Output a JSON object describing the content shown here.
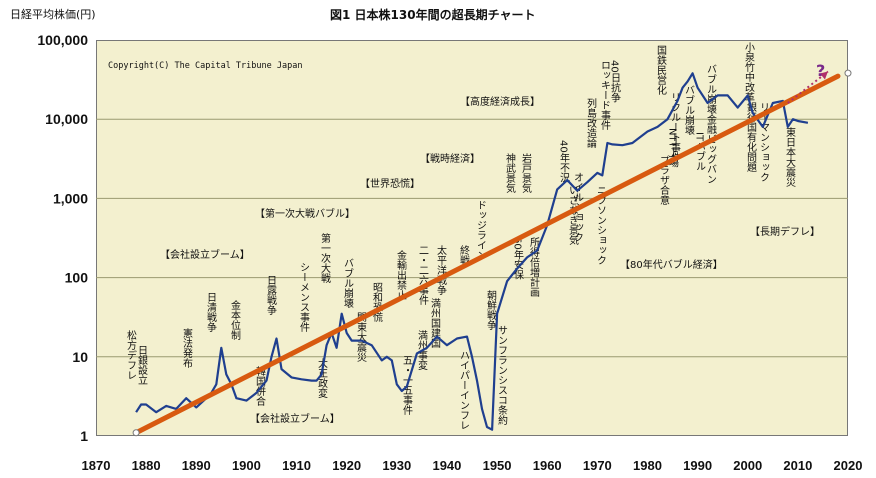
{
  "chart_data": {
    "type": "line",
    "title": "図1 日本株130年間の超長期チャート",
    "unit_label": "日経平均株価(円)",
    "copyright": "Copyright(C) The Capital Tribune Japan",
    "y_scale": "log",
    "ylim": [
      1,
      100000
    ],
    "xlim": [
      1870,
      2020
    ],
    "y_ticks": [
      "1",
      "10",
      "100",
      "1,000",
      "10,000",
      "100,000"
    ],
    "x_ticks": [
      "1870",
      "1880",
      "1890",
      "1900",
      "1910",
      "1920",
      "1930",
      "1940",
      "1950",
      "1960",
      "1970",
      "1980",
      "1990",
      "2000",
      "2010",
      "2020"
    ],
    "grid": true,
    "series": [
      {
        "color": "#1f3f8f",
        "x": [
          1878,
          1879,
          1880,
          1882,
          1884,
          1886,
          1888,
          1890,
          1892,
          1893,
          1894,
          1895,
          1896,
          1897,
          1898,
          1900,
          1902,
          1904,
          1905,
          1906,
          1907,
          1909,
          1911,
          1913,
          1914,
          1915,
          1916,
          1917,
          1918,
          1919,
          1920,
          1921,
          1923,
          1925,
          1927,
          1928,
          1929,
          1930,
          1931,
          1932,
          1934,
          1936,
          1938,
          1940,
          1942,
          1944,
          1945,
          1946,
          1947,
          1948,
          1949,
          1950,
          1952,
          1954,
          1956,
          1958,
          1960,
          1962,
          1964,
          1966,
          1968,
          1970,
          1971,
          1972,
          1973,
          1975,
          1977,
          1980,
          1982,
          1984,
          1986,
          1987,
          1988,
          1989,
          1990,
          1992,
          1994,
          1996,
          1998,
          2000,
          2001,
          2003,
          2005,
          2007,
          2008,
          2009,
          2010,
          2012
        ],
        "values": [
          2,
          2.5,
          2.5,
          2,
          2.4,
          2.2,
          3,
          2.3,
          3,
          3.5,
          4.5,
          13,
          6,
          4.5,
          3,
          2.8,
          3.5,
          5,
          10,
          17,
          7,
          5.5,
          5.2,
          5,
          5,
          6,
          14,
          20,
          13,
          35,
          20,
          16,
          16,
          14,
          9,
          10,
          9,
          4.5,
          3.7,
          4.2,
          11,
          13,
          18,
          14,
          17,
          18,
          10,
          5,
          2.2,
          1.3,
          1.2,
          35,
          90,
          130,
          180,
          220,
          460,
          1300,
          1700,
          1250,
          1600,
          2100,
          1950,
          5000,
          4800,
          4700,
          5000,
          7000,
          8000,
          10000,
          17000,
          25000,
          30000,
          38000,
          25000,
          16000,
          20000,
          20000,
          14000,
          20000,
          12000,
          8000,
          16000,
          17000,
          8000,
          10000,
          9500,
          9000
        ]
      }
    ],
    "trend_line": {
      "color": "#d85a10",
      "x": [
        1878,
        2018
      ],
      "values": [
        1.1,
        35000
      ]
    },
    "projection_label": "?",
    "eras": [
      "【第一次大戦バブル】",
      "【戦時経済】",
      "【世界恐慌】",
      "【会社設立ブーム】",
      "【会社設立ブーム】",
      "【高度経済成長】",
      "【80年代バブル経済】",
      "【長期デフレ】"
    ],
    "events_vertical": [
      "日銀設立",
      "松方デフレ",
      "憲法発布",
      "日清戦争",
      "金本位制",
      "韓国併合",
      "日露戦争",
      "第一次大戦",
      "シーメンス事件",
      "大正政変",
      "バブル崩壊",
      "関東大震災",
      "昭和恐慌",
      "金輸出禁止",
      "満州事変",
      "五・一五事件",
      "満州国建国",
      "太平洋戦争",
      "二・二六事件",
      "終戦",
      "ハイパーインフレ",
      "ドッジライン",
      "朝鮮戦争",
      "サンフランシスコ条約",
      "所得倍増計画",
      "60年安保",
      "岩戸景気",
      "神武景気",
      "40年不況",
      "列島改造論",
      "オイルショック",
      "いざなぎ景気",
      "ニクソンショック",
      "40日抗争",
      "ロッキード事件",
      "国鉄民営化",
      "プラザ合意",
      "リクルート事件",
      "NTT上場",
      "バブル崩壊",
      "バブル崩壊",
      "金融ビッグバン",
      "ITバブル",
      "銀行国有化問題",
      "小泉竹中改革",
      "リーマンショック",
      "東日本大震災"
    ]
  }
}
